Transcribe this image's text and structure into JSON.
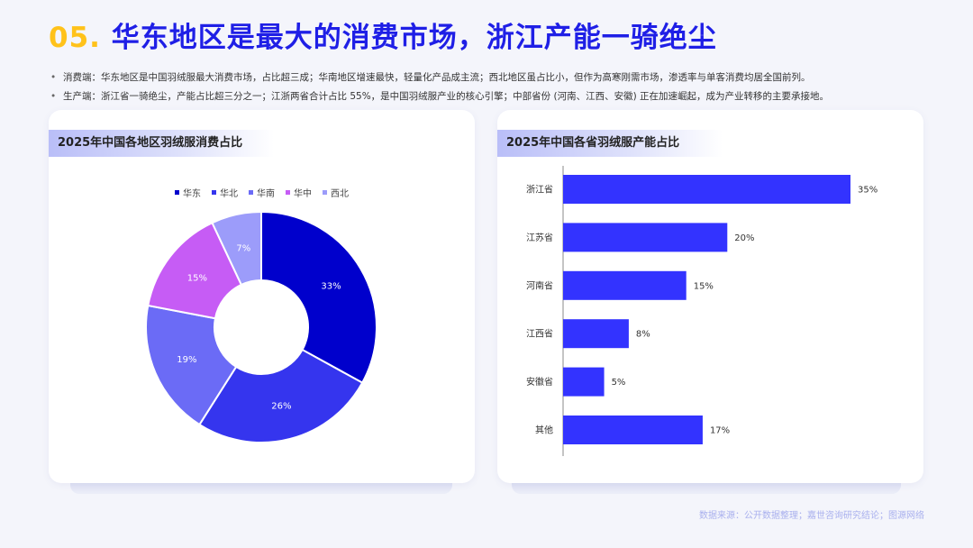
{
  "header": {
    "number": "05.",
    "title": "华东地区是最大的消费市场，浙江产能一骑绝尘"
  },
  "bullets": [
    "消费端：华东地区是中国羽绒服最大消费市场，占比超三成；华南地区增速最快，轻量化产品成主流；西北地区虽占比小，但作为高寒刚需市场，渗透率与单客消费均居全国前列。",
    "生产端：浙江省一骑绝尘，产能占比超三分之一；江浙两省合计占比 55%，是中国羽绒服产业的核心引擎；中部省份 (河南、江西、安徽) 正在加速崛起，成为产业转移的主要承接地。"
  ],
  "footer": "数据来源：公开数据整理；嘉世咨询研究结论；图源网络",
  "colors": {
    "title_number": "#ffc21a",
    "title_text": "#1f1fe6",
    "bar": "#3333ff"
  },
  "chart_data": [
    {
      "type": "pie",
      "variant": "donut",
      "title": "2025年中国各地区羽绒服消费占比",
      "legend_position": "top-center",
      "categories": [
        "华东",
        "华北",
        "华南",
        "华中",
        "西北"
      ],
      "values": [
        33,
        26,
        19,
        15,
        7
      ],
      "labels": [
        "33%",
        "26%",
        "19%",
        "15%",
        "7%"
      ],
      "colors": [
        "#0000cc",
        "#3535ee",
        "#6b6bf6",
        "#c65cf5",
        "#9c9cfa"
      ]
    },
    {
      "type": "bar",
      "orientation": "horizontal",
      "title": "2025年中国各省羽绒服产能占比",
      "categories": [
        "浙江省",
        "江苏省",
        "河南省",
        "江西省",
        "安徽省",
        "其他"
      ],
      "values": [
        35,
        20,
        15,
        8,
        5,
        17
      ],
      "labels": [
        "35%",
        "20%",
        "15%",
        "8%",
        "5%",
        "17%"
      ],
      "xlim": [
        0,
        40
      ],
      "grid": false
    }
  ]
}
